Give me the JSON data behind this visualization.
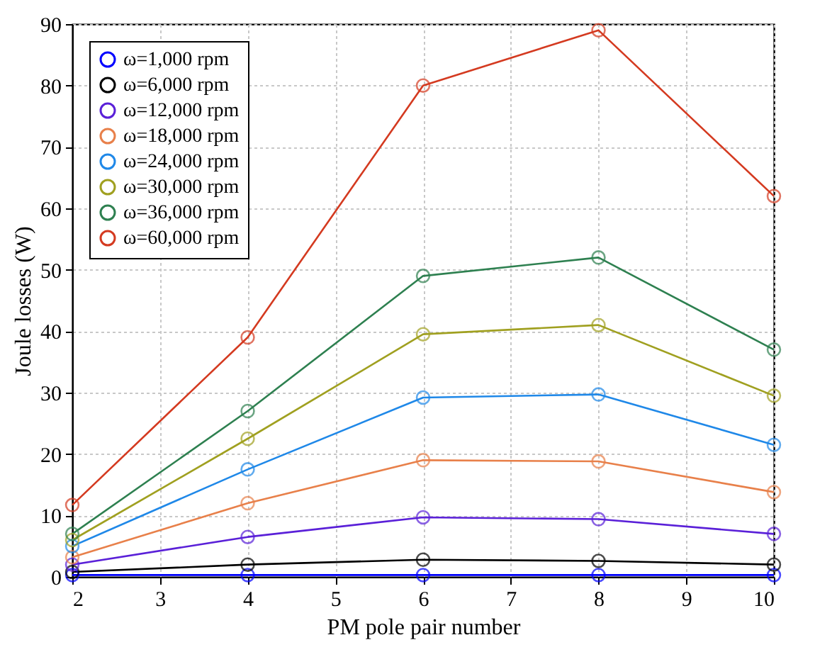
{
  "chart_data": {
    "type": "line",
    "xlabel": "PM pole pair number",
    "ylabel": "Joule losses (W)",
    "x": [
      2,
      4,
      6,
      8,
      10
    ],
    "xlim": [
      2,
      10
    ],
    "xticks": [
      2,
      3,
      4,
      5,
      6,
      7,
      8,
      9,
      10
    ],
    "ylim": [
      0,
      90
    ],
    "yticks": [
      0,
      10,
      20,
      30,
      40,
      50,
      60,
      70,
      80,
      90
    ],
    "grid": true,
    "legend": "top left",
    "marker": "circle",
    "series": [
      {
        "name": "ω=1,000 rpm",
        "color": "#0000ff",
        "values": [
          0.3,
          0.3,
          0.3,
          0.3,
          0.3
        ]
      },
      {
        "name": "ω=6,000 rpm",
        "color": "#000000",
        "values": [
          0.8,
          2.0,
          2.8,
          2.6,
          2.0
        ]
      },
      {
        "name": "ω=12,000 rpm",
        "color": "#5a20d8",
        "values": [
          2,
          6.5,
          9.7,
          9.4,
          7
        ]
      },
      {
        "name": "ω=18,000 rpm",
        "color": "#e8804a",
        "values": [
          3.2,
          12,
          19,
          18.8,
          13.8
        ]
      },
      {
        "name": "ω=24,000 rpm",
        "color": "#1f88e8",
        "values": [
          5,
          17.5,
          29.2,
          29.7,
          21.5
        ]
      },
      {
        "name": "ω=30,000 rpm",
        "color": "#a0a020",
        "values": [
          6,
          22.5,
          39.5,
          41,
          29.5
        ]
      },
      {
        "name": "ω=36,000 rpm",
        "color": "#2e8050",
        "values": [
          7,
          27,
          49,
          52,
          37
        ]
      },
      {
        "name": "ω=60,000 rpm",
        "color": "#d43a20",
        "values": [
          11.7,
          39,
          80,
          89,
          62
        ]
      }
    ]
  }
}
